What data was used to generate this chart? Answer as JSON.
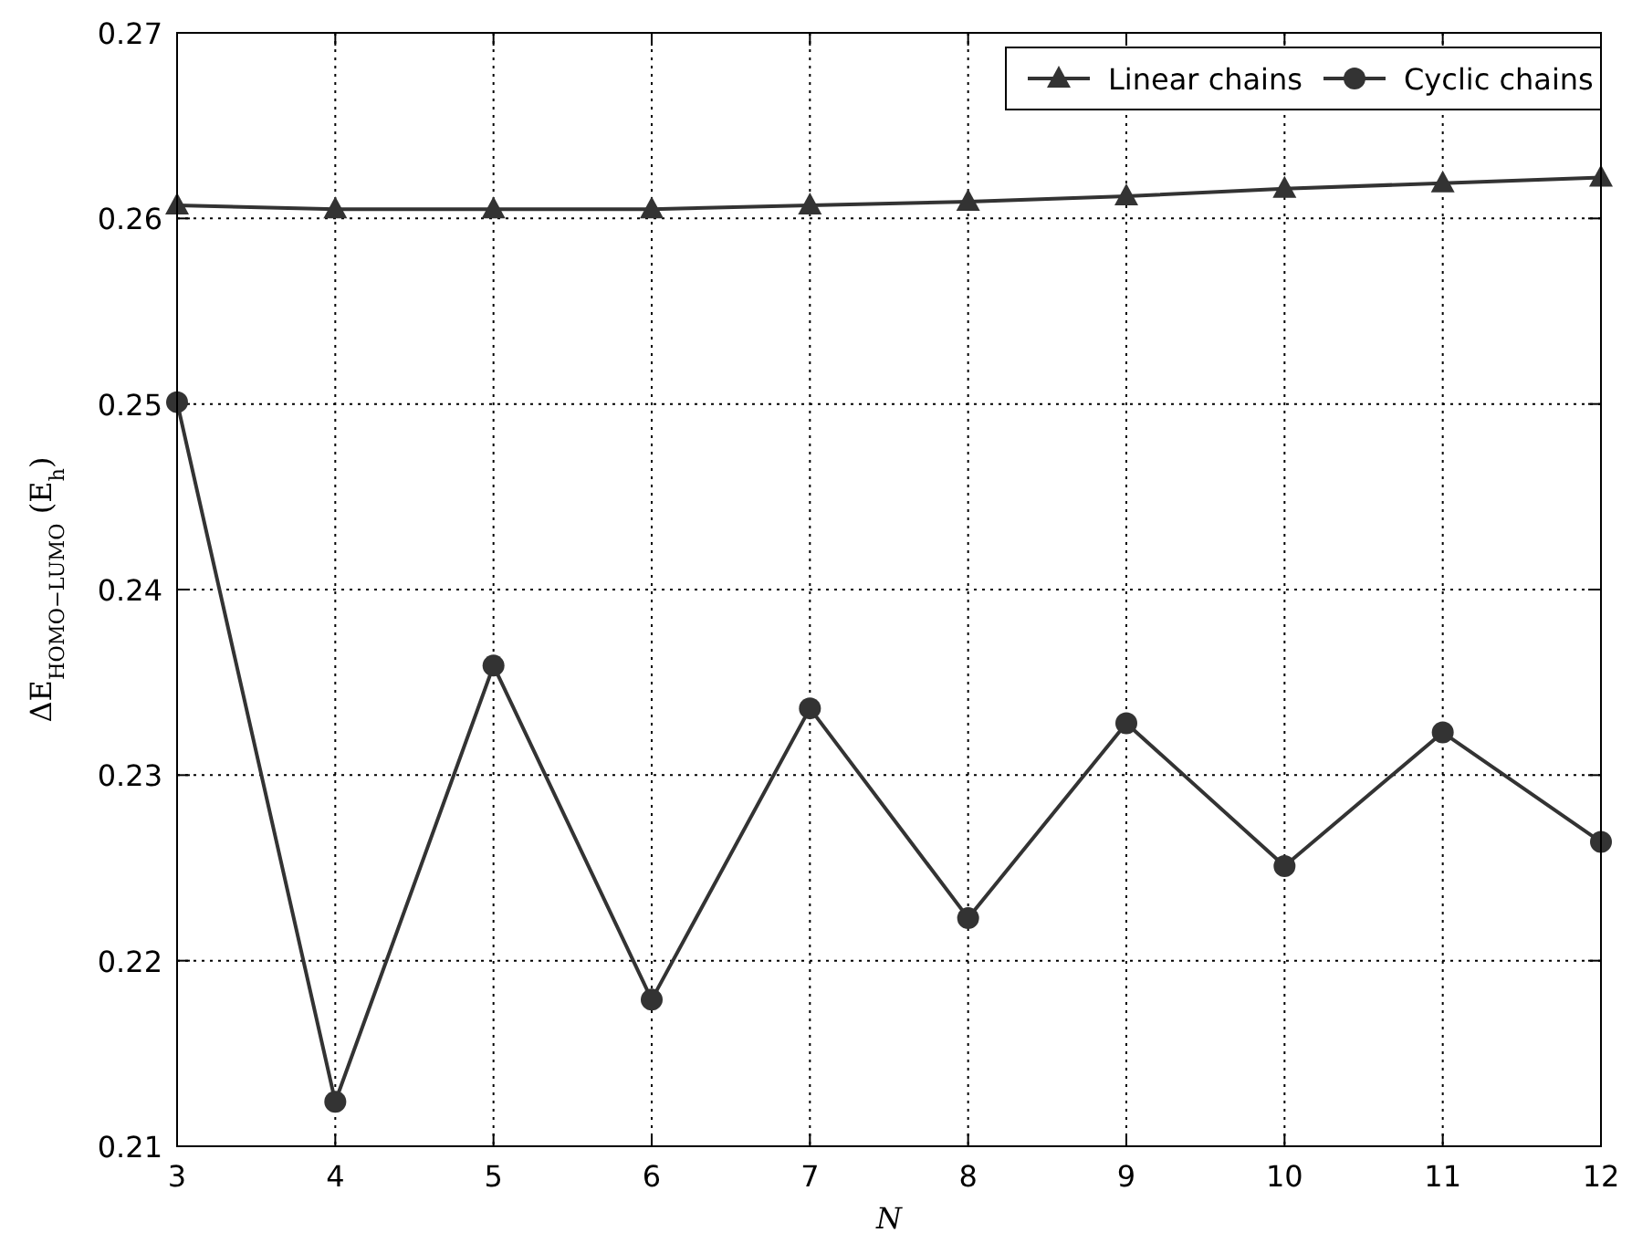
{
  "chart_data": {
    "type": "line",
    "xlabel": "N",
    "ylabel": "ΔE$_{HOMO−LUMO}$ (E$_{h}$)",
    "x": [
      3,
      4,
      5,
      6,
      7,
      8,
      9,
      10,
      11,
      12
    ],
    "series": [
      {
        "name": "Linear chains",
        "color": "#333333",
        "marker": "triangle",
        "values": [
          0.2607,
          0.2605,
          0.2605,
          0.2605,
          0.2607,
          0.2609,
          0.2612,
          0.2616,
          0.2619,
          0.2622
        ]
      },
      {
        "name": "Cyclic chains",
        "color": "#333333",
        "marker": "circle",
        "values": [
          0.2501,
          0.2124,
          0.2359,
          0.2179,
          0.2336,
          0.2223,
          0.2328,
          0.2251,
          0.2323,
          0.2264
        ]
      }
    ],
    "xlim": [
      3,
      12
    ],
    "xticks": [
      3,
      4,
      5,
      6,
      7,
      8,
      9,
      10,
      11,
      12
    ],
    "ylim": [
      0.21,
      0.27
    ],
    "yticks": [
      0.21,
      0.22,
      0.23,
      0.24,
      0.25,
      0.26,
      0.27
    ],
    "grid": true,
    "legend": "top right",
    "line_style": "solid"
  }
}
